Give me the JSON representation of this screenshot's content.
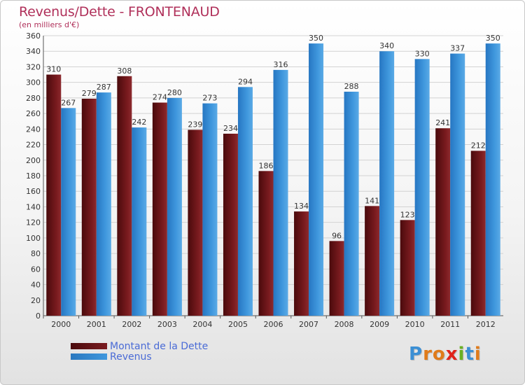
{
  "title": "Revenus/Dette - FRONTENAUD",
  "subtitle": "(en milliers d'€)",
  "colors": {
    "dette": "#7a1b1f",
    "revenus": "#3f97dd",
    "title": "#b0305a"
  },
  "legend": {
    "dette": "Montant de la Dette",
    "revenus": "Revenus"
  },
  "logo": {
    "letters": [
      "P",
      "r",
      "o",
      "x",
      "i",
      "t",
      "i"
    ],
    "colors": [
      "#3b8fd4",
      "#e07b1a",
      "#e07b1a",
      "#e0231a",
      "#6ab023",
      "#3b8fd4",
      "#e07b1a"
    ]
  },
  "chart_data": {
    "type": "bar",
    "categories": [
      "2000",
      "2001",
      "2002",
      "2003",
      "2004",
      "2005",
      "2006",
      "2007",
      "2008",
      "2009",
      "2010",
      "2011",
      "2012"
    ],
    "series": [
      {
        "name": "Montant de la Dette",
        "values": [
          310,
          279,
          308,
          274,
          239,
          234,
          186,
          134,
          96,
          141,
          123,
          241,
          212
        ]
      },
      {
        "name": "Revenus",
        "values": [
          267,
          287,
          242,
          280,
          273,
          294,
          316,
          350,
          288,
          340,
          330,
          337,
          350
        ]
      }
    ],
    "ylim": [
      0,
      360
    ],
    "yticks": [
      0,
      20,
      40,
      60,
      80,
      100,
      120,
      140,
      160,
      180,
      200,
      220,
      240,
      260,
      280,
      300,
      320,
      340,
      360
    ],
    "grid": true
  }
}
